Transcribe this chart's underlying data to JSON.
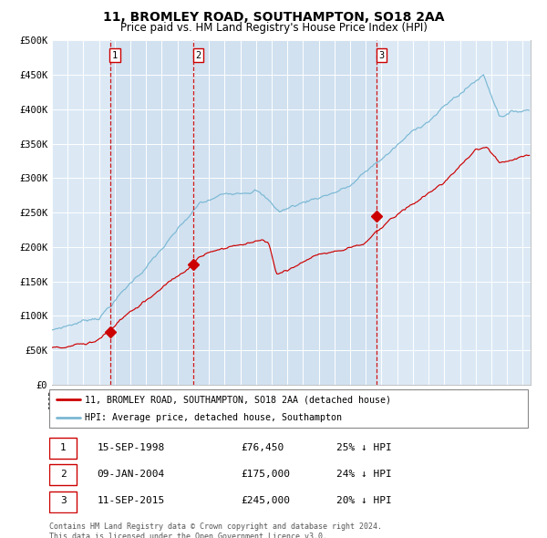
{
  "title": "11, BROMLEY ROAD, SOUTHAMPTON, SO18 2AA",
  "subtitle": "Price paid vs. HM Land Registry's House Price Index (HPI)",
  "title_fontsize": 10,
  "subtitle_fontsize": 8.5,
  "hpi_color": "#7ab8d4",
  "price_color": "#cc0000",
  "background_color": "#dce9f5",
  "plot_bg_color": "#dce9f5",
  "grid_color": "#ffffff",
  "ylim": [
    0,
    500000
  ],
  "yticks": [
    0,
    50000,
    100000,
    150000,
    200000,
    250000,
    300000,
    350000,
    400000,
    450000,
    500000
  ],
  "ytick_labels": [
    "£0",
    "£50K",
    "£100K",
    "£150K",
    "£200K",
    "£250K",
    "£300K",
    "£350K",
    "£400K",
    "£450K",
    "£500K"
  ],
  "sale_dates": [
    1998.71,
    2004.03,
    2015.71
  ],
  "sale_prices": [
    76450,
    175000,
    245000
  ],
  "sale_labels": [
    "1",
    "2",
    "3"
  ],
  "legend_entries": [
    "11, BROMLEY ROAD, SOUTHAMPTON, SO18 2AA (detached house)",
    "HPI: Average price, detached house, Southampton"
  ],
  "table_data": [
    [
      "1",
      "15-SEP-1998",
      "£76,450",
      "25% ↓ HPI"
    ],
    [
      "2",
      "09-JAN-2004",
      "£175,000",
      "24% ↓ HPI"
    ],
    [
      "3",
      "11-SEP-2015",
      "£245,000",
      "20% ↓ HPI"
    ]
  ],
  "footer": "Contains HM Land Registry data © Crown copyright and database right 2024.\nThis data is licensed under the Open Government Licence v3.0.",
  "xstart": 1995.3,
  "xend": 2025.5
}
